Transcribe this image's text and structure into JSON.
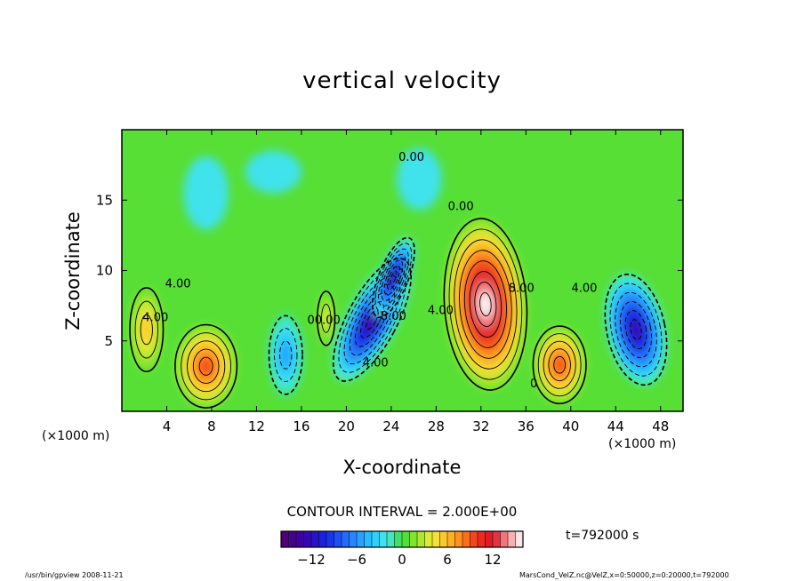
{
  "chart_data": {
    "type": "heatmap",
    "title": "vertical velocity",
    "xlabel": "X-coordinate",
    "ylabel": "Z-coordinate",
    "x_unit": "(×1000 m)",
    "xlim": [
      0,
      50
    ],
    "ylim": [
      0,
      20
    ],
    "x_ticks": [
      4,
      8,
      12,
      16,
      20,
      24,
      28,
      32,
      36,
      40,
      44,
      48
    ],
    "y_ticks": [
      5,
      10,
      15
    ],
    "contour_interval_text": "CONTOUR INTERVAL = 2.000E+00",
    "contour_labels": [
      {
        "text": "0.00",
        "x": 25.8,
        "y": 17.8
      },
      {
        "text": "0.00",
        "x": 30.2,
        "y": 14.3
      },
      {
        "text": "4.00",
        "x": 5.0,
        "y": 8.8
      },
      {
        "text": "4.00",
        "x": 3.0,
        "y": 6.4
      },
      {
        "text": "00.00",
        "x": 18.0,
        "y": 6.2
      },
      {
        "text": "8.00",
        "x": 24.2,
        "y": 6.5
      },
      {
        "text": "4.00",
        "x": 22.6,
        "y": 3.2
      },
      {
        "text": "4.00",
        "x": 28.4,
        "y": 6.9
      },
      {
        "text": "8.00",
        "x": 35.6,
        "y": 8.5
      },
      {
        "text": "4.00",
        "x": 41.2,
        "y": 8.5
      },
      {
        "text": "0",
        "x": 36.7,
        "y": 1.7
      }
    ],
    "features": [
      {
        "kind": "updraft",
        "x": 32.4,
        "z": 7.6,
        "peak": 16
      },
      {
        "kind": "updraft",
        "x": 39.0,
        "z": 3.3,
        "peak": 10
      },
      {
        "kind": "updraft",
        "x": 7.5,
        "z": 3.2,
        "peak": 10
      },
      {
        "kind": "updraft",
        "x": 2.2,
        "z": 5.8,
        "peak": 6
      },
      {
        "kind": "updraft",
        "x": 18.2,
        "z": 6.6,
        "peak": 4
      },
      {
        "kind": "downdraft",
        "x": 22.3,
        "z": 6.5,
        "peak": -14
      },
      {
        "kind": "downdraft",
        "x": 24.2,
        "z": 9.5,
        "peak": -14
      },
      {
        "kind": "downdraft",
        "x": 45.8,
        "z": 5.8,
        "peak": -13
      },
      {
        "kind": "downdraft",
        "x": 14.6,
        "z": 4.0,
        "peak": -6
      }
    ],
    "colorbar": {
      "min": -16,
      "max": 16,
      "tick_labels": [
        "-12",
        "-6",
        "0",
        "6",
        "12"
      ],
      "tick_values": [
        -12,
        -6,
        0,
        6,
        12
      ]
    },
    "time_label": "t=792000 s",
    "grid": false
  },
  "footer": {
    "left": "/usr/bin/gpview  2008-11-21",
    "right": "MarsCond_VelZ.nc@VelZ,x=0:50000,z=0:20000,t=792000"
  }
}
